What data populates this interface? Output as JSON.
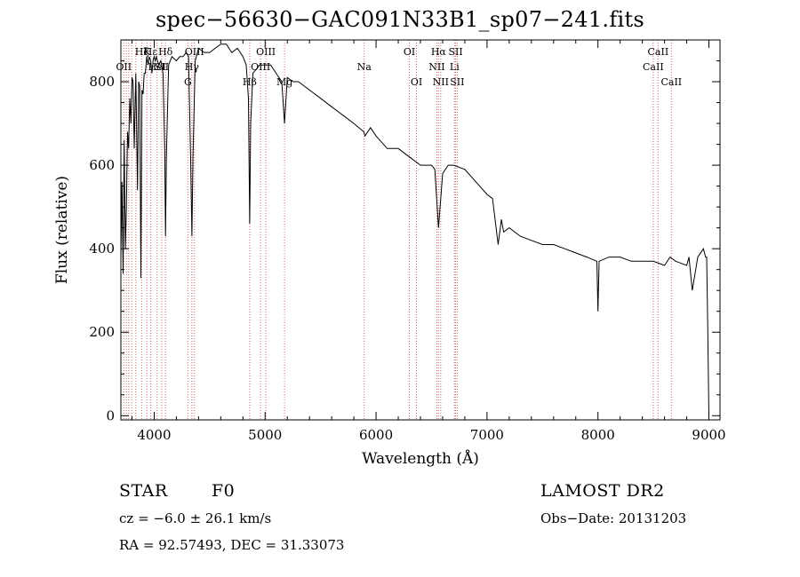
{
  "chart_data": {
    "type": "line",
    "title": "spec−56630−GAC091N33B1_sp07−241.fits",
    "xlabel": "Wavelength (Å)",
    "ylabel": "Flux (relative)",
    "xlim": [
      3700,
      9100
    ],
    "ylim": [
      -10,
      900
    ],
    "xticks": [
      4000,
      5000,
      6000,
      7000,
      8000,
      9000
    ],
    "yticks": [
      0,
      200,
      400,
      600,
      800
    ],
    "grid": false,
    "series": [
      {
        "x": [
          3700,
          3710,
          3720,
          3730,
          3740,
          3750,
          3760,
          3770,
          3780,
          3790,
          3800,
          3810,
          3820,
          3835,
          3850,
          3860,
          3870,
          3880,
          3890,
          3900,
          3910,
          3920,
          3933,
          3945,
          3955,
          3968,
          3980,
          3990,
          4000,
          4010,
          4020,
          4040,
          4060,
          4080,
          4095,
          4102,
          4110,
          4130,
          4160,
          4200,
          4230,
          4260,
          4290,
          4310,
          4330,
          4340,
          4350,
          4370,
          4400,
          4450,
          4500,
          4550,
          4600,
          4650,
          4700,
          4750,
          4800,
          4830,
          4850,
          4861,
          4870,
          4890,
          4920,
          4950,
          5000,
          5050,
          5100,
          5150,
          5175,
          5200,
          5250,
          5300,
          5400,
          5500,
          5600,
          5700,
          5800,
          5890,
          5900,
          5950,
          6000,
          6100,
          6200,
          6300,
          6400,
          6450,
          6500,
          6530,
          6563,
          6600,
          6650,
          6700,
          6800,
          6900,
          7000,
          7050,
          7100,
          7130,
          7150,
          7200,
          7300,
          7400,
          7500,
          7600,
          7700,
          7800,
          7900,
          7990,
          8000,
          8010,
          8100,
          8200,
          8300,
          8400,
          8500,
          8600,
          8650,
          8700,
          8800,
          8820,
          8850,
          8900,
          8950,
          8970,
          8980,
          8990,
          9000
        ],
        "values": [
          380,
          560,
          340,
          660,
          400,
          500,
          680,
          640,
          760,
          700,
          810,
          800,
          640,
          820,
          540,
          800,
          790,
          330,
          780,
          770,
          820,
          820,
          860,
          840,
          860,
          850,
          820,
          850,
          860,
          850,
          860,
          840,
          850,
          820,
          640,
          430,
          620,
          840,
          860,
          850,
          860,
          860,
          870,
          860,
          600,
          430,
          620,
          850,
          880,
          870,
          870,
          880,
          890,
          890,
          870,
          880,
          860,
          840,
          760,
          460,
          700,
          820,
          830,
          840,
          840,
          840,
          820,
          800,
          700,
          810,
          800,
          800,
          780,
          760,
          740,
          720,
          700,
          680,
          670,
          690,
          670,
          640,
          640,
          620,
          600,
          600,
          600,
          590,
          450,
          580,
          600,
          600,
          590,
          560,
          530,
          520,
          410,
          470,
          440,
          450,
          430,
          420,
          410,
          410,
          400,
          390,
          380,
          370,
          250,
          370,
          380,
          380,
          370,
          370,
          370,
          360,
          380,
          370,
          360,
          380,
          300,
          380,
          400,
          380,
          380,
          200,
          0
        ]
      }
    ],
    "lines": [
      {
        "x": 3726,
        "label": "OII",
        "row": 1
      },
      {
        "x": 3750,
        "label": "",
        "row": 0
      },
      {
        "x": 3771,
        "label": "",
        "row": 0
      },
      {
        "x": 3798,
        "label": "",
        "row": 0
      },
      {
        "x": 3835,
        "label": "",
        "row": 0
      },
      {
        "x": 3889,
        "label": "Hζ",
        "row": 0
      },
      {
        "x": 3934,
        "label": "K",
        "row": 0
      },
      {
        "x": 3968,
        "label": "Hε",
        "row": 0
      },
      {
        "x": 4026,
        "label": "HeI",
        "row": 1
      },
      {
        "x": 4068,
        "label": "SII",
        "row": 1
      },
      {
        "x": 4102,
        "label": "Hδ",
        "row": 0
      },
      {
        "x": 4304,
        "label": "G",
        "row": 2
      },
      {
        "x": 4340,
        "label": "Hγ",
        "row": 1
      },
      {
        "x": 4363,
        "label": "OIII",
        "row": 0
      },
      {
        "x": 4861,
        "label": "Hβ",
        "row": 2
      },
      {
        "x": 4959,
        "label": "OIII",
        "row": 1
      },
      {
        "x": 5007,
        "label": "OIII",
        "row": 0
      },
      {
        "x": 5175,
        "label": "Mg",
        "row": 2
      },
      {
        "x": 5893,
        "label": "Na",
        "row": 1
      },
      {
        "x": 6300,
        "label": "OI",
        "row": 0
      },
      {
        "x": 6364,
        "label": "OI",
        "row": 2
      },
      {
        "x": 6548,
        "label": "NII",
        "row": 1
      },
      {
        "x": 6563,
        "label": "Hα",
        "row": 0
      },
      {
        "x": 6583,
        "label": "NII",
        "row": 2
      },
      {
        "x": 6707,
        "label": "Li",
        "row": 1
      },
      {
        "x": 6717,
        "label": "SII",
        "row": 0
      },
      {
        "x": 6731,
        "label": "SII",
        "row": 2
      },
      {
        "x": 8498,
        "label": "CaII",
        "row": 1
      },
      {
        "x": 8542,
        "label": "CaII",
        "row": 0
      },
      {
        "x": 8662,
        "label": "CaII",
        "row": 2
      }
    ]
  },
  "info": {
    "object_class": "STAR",
    "subclass": "F0",
    "survey": "LAMOST DR2",
    "cz": "cz = −6.0 ± 26.1 km/s",
    "obs_date": "Obs−Date: 20131203",
    "coords": "RA =  92.57493, DEC =  31.33073"
  }
}
